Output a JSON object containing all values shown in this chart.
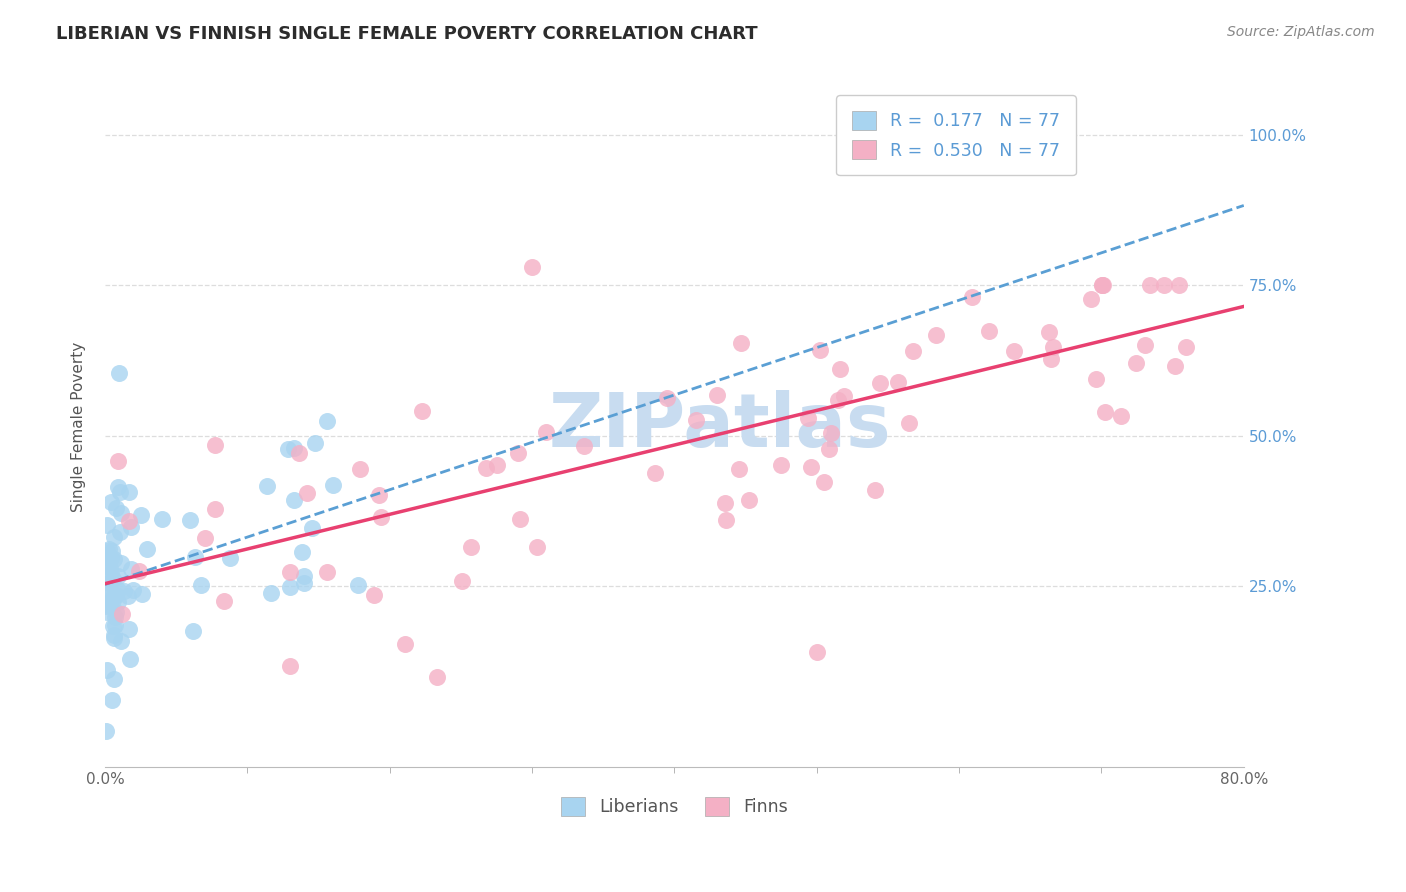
{
  "title": "LIBERIAN VS FINNISH SINGLE FEMALE POVERTY CORRELATION CHART",
  "source_text": "Source: ZipAtlas.com",
  "ylabel": "Single Female Poverty",
  "xlim": [
    0.0,
    0.8
  ],
  "ylim": [
    -0.05,
    1.08
  ],
  "xtick_positions": [
    0.0,
    0.8
  ],
  "xtick_labels": [
    "0.0%",
    "80.0%"
  ],
  "ytick_vals": [
    0.25,
    0.5,
    0.75,
    1.0
  ],
  "ytick_labels_right": [
    "25.0%",
    "50.0%",
    "75.0%",
    "100.0%"
  ],
  "blue_fill": "#A8D4F0",
  "pink_fill": "#F4B0C5",
  "blue_line": "#5A9FD4",
  "pink_line": "#E84070",
  "right_label_color": "#5B9BD5",
  "title_color": "#2C2C2C",
  "source_color": "#888888",
  "legend_blue_label": "R =  0.177   N = 77",
  "legend_pink_label": "R =  0.530   N = 77",
  "liberian_label": "Liberians",
  "finn_label": "Finns",
  "watermark": "ZIPatlas",
  "watermark_color": "#C8DCF0",
  "R_blue": 0.177,
  "R_pink": 0.53,
  "N": 77,
  "background_color": "#FFFFFF",
  "grid_color": "#DDDDDD",
  "blue_trend_intercept": 0.26,
  "blue_trend_slope": 0.6,
  "pink_trend_intercept": 0.22,
  "pink_trend_slope": 0.65
}
